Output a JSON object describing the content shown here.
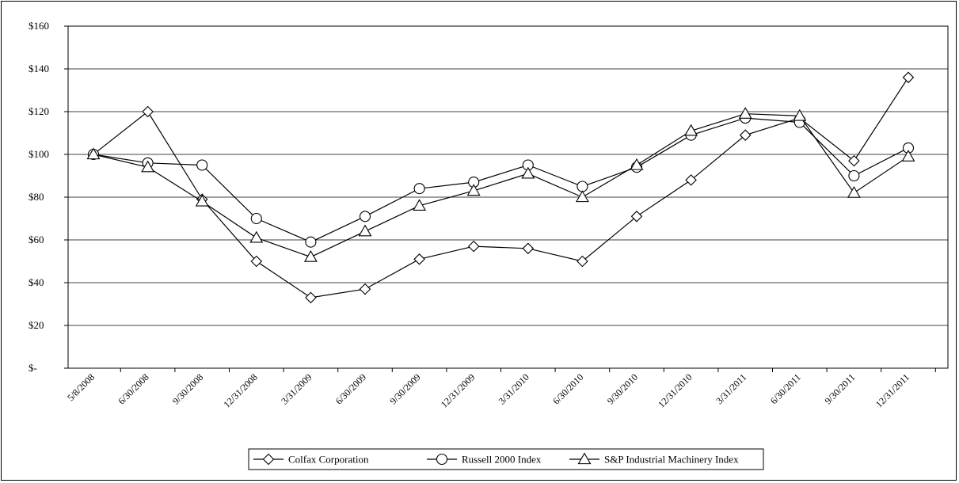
{
  "chart_data": {
    "type": "line",
    "categories": [
      "5/8/2008",
      "6/30/2008",
      "9/30/2008",
      "12/31/2008",
      "3/31/2009",
      "6/30/2009",
      "9/30/2009",
      "12/31/2009",
      "3/31/2010",
      "6/30/2010",
      "9/30/2010",
      "12/31/2010",
      "3/31/2011",
      "6/30/2011",
      "9/30/2011",
      "12/31/2011"
    ],
    "y_ticks": [
      "$-",
      "$20",
      "$40",
      "$60",
      "$80",
      "$100",
      "$120",
      "$140",
      "$160"
    ],
    "ylim": [
      0,
      160
    ],
    "grid": true,
    "legend_position": "bottom-center",
    "series": [
      {
        "name": "Colfax Corporation",
        "marker": "diamond",
        "values": [
          100,
          120,
          79,
          50,
          33,
          37,
          51,
          57,
          56,
          50,
          71,
          88,
          109,
          117,
          97,
          136
        ]
      },
      {
        "name": "Russell 2000 Index",
        "marker": "circle",
        "values": [
          100,
          96,
          95,
          70,
          59,
          71,
          84,
          87,
          95,
          85,
          94,
          109,
          117,
          115,
          90,
          103
        ]
      },
      {
        "name": "S&P Industrial Machinery Index",
        "marker": "triangle",
        "values": [
          100,
          94,
          78,
          61,
          52,
          64,
          76,
          83,
          91,
          80,
          95,
          111,
          119,
          118,
          82,
          99
        ]
      }
    ]
  }
}
